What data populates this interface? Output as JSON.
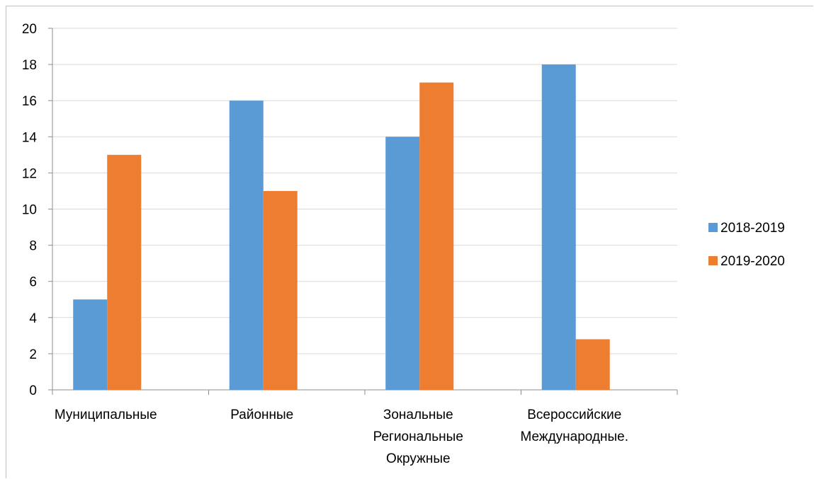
{
  "chart_data": {
    "type": "bar",
    "categories": [
      [
        "Муниципальные"
      ],
      [
        "Районные"
      ],
      [
        "Зональные",
        "Региональные",
        "Окружные"
      ],
      [
        "Всероссийские",
        "Международные."
      ]
    ],
    "series": [
      {
        "name": "2018-2019",
        "color": "#5b9bd5",
        "values": [
          5,
          16,
          14,
          18
        ]
      },
      {
        "name": "2019-2020",
        "color": "#ed7d31",
        "values": [
          13,
          11,
          17,
          2.8
        ]
      }
    ],
    "yticks": [
      "0",
      "2",
      "4",
      "6",
      "8",
      "10",
      "12",
      "14",
      "16",
      "18",
      "20"
    ],
    "ylim": [
      0,
      20
    ],
    "grid": true,
    "legend_position": "right",
    "title": "",
    "xlabel": "",
    "ylabel": ""
  }
}
